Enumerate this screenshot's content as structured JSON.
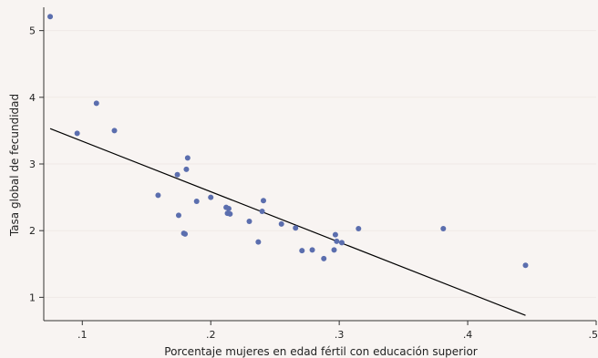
{
  "chart_data": {
    "type": "scatter",
    "title": "",
    "xlabel": "Porcentaje mujeres en edad fértil con educación superior",
    "ylabel": "Tasa global de fecundidad",
    "xlim": [
      0.07,
      0.5
    ],
    "ylim": [
      0.65,
      5.35
    ],
    "x_ticks": [
      0.1,
      0.2,
      0.3,
      0.4,
      0.5
    ],
    "x_tick_labels": [
      ".1",
      ".2",
      ".3",
      ".4",
      ".5"
    ],
    "y_ticks": [
      1,
      2,
      3,
      4,
      5
    ],
    "y_tick_labels": [
      "1",
      "2",
      "3",
      "4",
      "5"
    ],
    "grid": true,
    "legend": "none",
    "colors": {
      "background": "#f8f4f2",
      "point": "#5b6eae",
      "fit_line": "#000000",
      "grid": "#efe9e6",
      "axis": "#333333"
    },
    "series": [
      {
        "values": [
          {
            "x": 0.075,
            "y": 5.21
          },
          {
            "x": 0.096,
            "y": 3.46
          },
          {
            "x": 0.111,
            "y": 3.91
          },
          {
            "x": 0.125,
            "y": 3.5
          },
          {
            "x": 0.159,
            "y": 2.53
          },
          {
            "x": 0.174,
            "y": 2.84
          },
          {
            "x": 0.175,
            "y": 2.23
          },
          {
            "x": 0.179,
            "y": 1.96
          },
          {
            "x": 0.18,
            "y": 1.95
          },
          {
            "x": 0.181,
            "y": 2.92
          },
          {
            "x": 0.182,
            "y": 3.09
          },
          {
            "x": 0.189,
            "y": 2.44
          },
          {
            "x": 0.2,
            "y": 2.5
          },
          {
            "x": 0.212,
            "y": 2.35
          },
          {
            "x": 0.213,
            "y": 2.26
          },
          {
            "x": 0.214,
            "y": 2.33
          },
          {
            "x": 0.215,
            "y": 2.25
          },
          {
            "x": 0.23,
            "y": 2.14
          },
          {
            "x": 0.237,
            "y": 1.83
          },
          {
            "x": 0.24,
            "y": 2.29
          },
          {
            "x": 0.241,
            "y": 2.45
          },
          {
            "x": 0.255,
            "y": 2.1
          },
          {
            "x": 0.266,
            "y": 2.04
          },
          {
            "x": 0.271,
            "y": 1.7
          },
          {
            "x": 0.279,
            "y": 1.71
          },
          {
            "x": 0.288,
            "y": 1.58
          },
          {
            "x": 0.296,
            "y": 1.71
          },
          {
            "x": 0.297,
            "y": 1.94
          },
          {
            "x": 0.298,
            "y": 1.84
          },
          {
            "x": 0.302,
            "y": 1.82
          },
          {
            "x": 0.315,
            "y": 2.03
          },
          {
            "x": 0.381,
            "y": 2.03
          },
          {
            "x": 0.445,
            "y": 1.48
          }
        ]
      }
    ],
    "fit_line": {
      "x": [
        0.075,
        0.445
      ],
      "y": [
        3.53,
        0.73
      ]
    }
  }
}
